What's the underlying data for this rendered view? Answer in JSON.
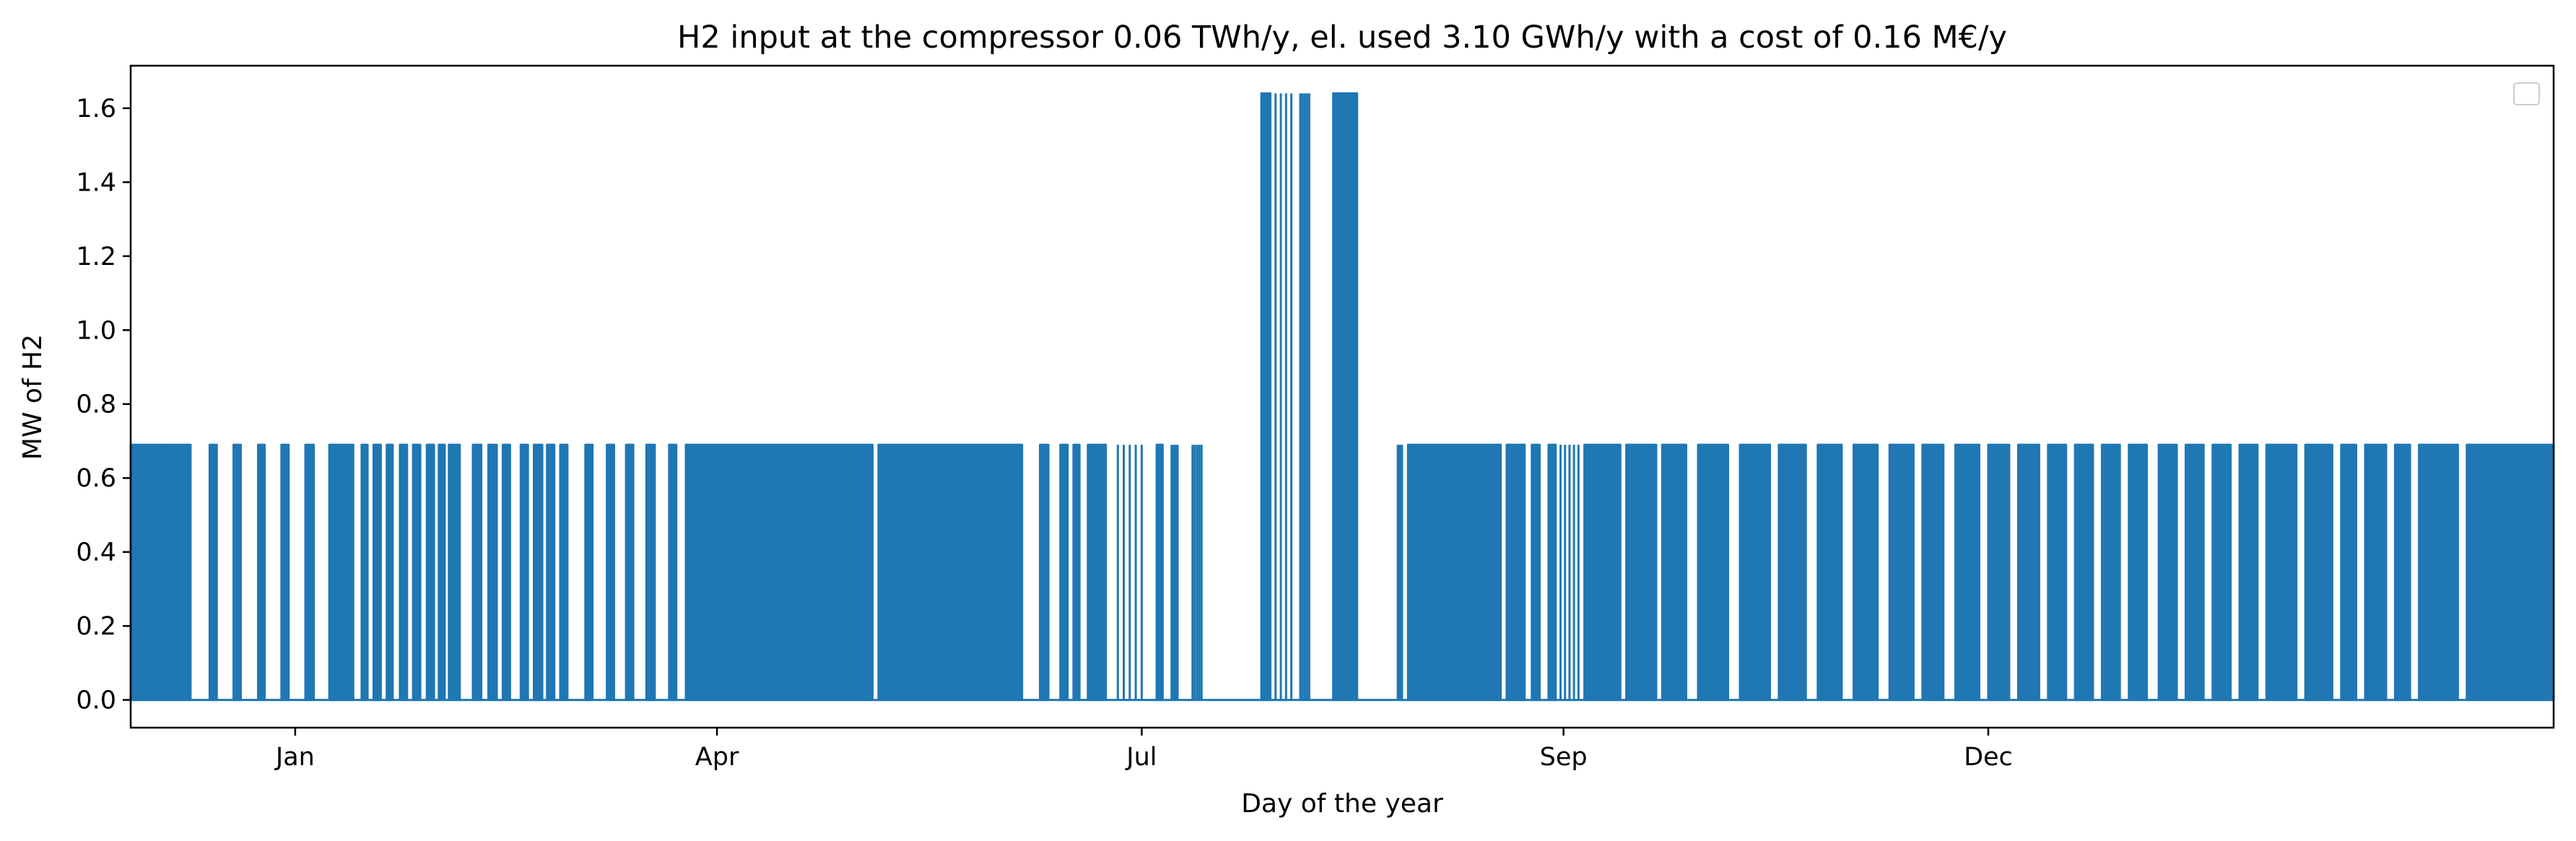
{
  "chart_data": {
    "type": "line",
    "title": "H2 input at the compressor 0.06 TWh/y, el. used 3.10 GWh/y with a cost of 0.16 M€/y",
    "xlabel": "Day of the year",
    "ylabel": "MW of H2",
    "x_ticks": [
      "Jan",
      "Apr",
      "Jul",
      "Sep",
      "Dec"
    ],
    "y_ticks": [
      "0.0",
      "0.2",
      "0.4",
      "0.6",
      "0.8",
      "1.0",
      "1.2",
      "1.4",
      "1.6"
    ],
    "ylim": [
      -0.075,
      1.715
    ],
    "grid": false,
    "legend": "top-right, empty",
    "series": [
      {
        "color": "#1f77b4",
        "on_value": 0.69,
        "peak_value": 1.64,
        "blocks": [
          {
            "start": -0.1,
            "end": 0.5,
            "kind": "dense",
            "level": 0.69
          },
          {
            "start": 0.5,
            "end": 0.9,
            "kind": "dense",
            "level": 0.69
          },
          {
            "start": 1.22,
            "end": 1.34,
            "kind": "dense",
            "level": 0.69
          },
          {
            "start": 1.62,
            "end": 1.74,
            "kind": "dense",
            "level": 0.69
          },
          {
            "start": 2.03,
            "end": 2.14,
            "kind": "dense",
            "level": 0.69
          },
          {
            "start": 2.42,
            "end": 2.54,
            "kind": "dense",
            "level": 0.69
          },
          {
            "start": 2.82,
            "end": 2.96,
            "kind": "dense",
            "level": 0.69
          },
          {
            "start": 3.22,
            "end": 3.62,
            "kind": "dense",
            "level": 0.69
          },
          {
            "start": 3.76,
            "end": 3.86,
            "kind": "dense",
            "level": 0.69
          },
          {
            "start": 3.96,
            "end": 4.08,
            "kind": "dense",
            "level": 0.69
          },
          {
            "start": 4.18,
            "end": 4.28,
            "kind": "dense",
            "level": 0.69
          },
          {
            "start": 4.4,
            "end": 4.52,
            "kind": "dense",
            "level": 0.69
          },
          {
            "start": 4.62,
            "end": 4.74,
            "kind": "dense",
            "level": 0.69
          },
          {
            "start": 4.85,
            "end": 4.97,
            "kind": "dense",
            "level": 0.69
          },
          {
            "start": 5.05,
            "end": 5.15,
            "kind": "dense",
            "level": 0.69
          },
          {
            "start": 5.22,
            "end": 5.4,
            "kind": "dense",
            "level": 0.69
          },
          {
            "start": 5.62,
            "end": 5.76,
            "kind": "dense",
            "level": 0.69
          },
          {
            "start": 5.88,
            "end": 6.02,
            "kind": "dense",
            "level": 0.69
          },
          {
            "start": 6.12,
            "end": 6.24,
            "kind": "dense",
            "level": 0.69
          },
          {
            "start": 6.42,
            "end": 6.54,
            "kind": "dense",
            "level": 0.69
          },
          {
            "start": 6.64,
            "end": 6.78,
            "kind": "dense",
            "level": 0.69
          },
          {
            "start": 6.86,
            "end": 6.98,
            "kind": "dense",
            "level": 0.69
          },
          {
            "start": 7.08,
            "end": 7.2,
            "kind": "dense",
            "level": 0.69
          },
          {
            "start": 7.5,
            "end": 7.62,
            "kind": "dense",
            "level": 0.69
          },
          {
            "start": 7.86,
            "end": 7.98,
            "kind": "dense",
            "level": 0.69
          },
          {
            "start": 8.18,
            "end": 8.3,
            "kind": "dense",
            "level": 0.69
          },
          {
            "start": 8.52,
            "end": 8.66,
            "kind": "dense",
            "level": 0.69
          },
          {
            "start": 8.9,
            "end": 9.02,
            "kind": "dense",
            "level": 0.69
          },
          {
            "start": 9.18,
            "end": 12.3,
            "kind": "dense",
            "level": 0.69
          },
          {
            "start": 12.4,
            "end": 14.8,
            "kind": "dense",
            "level": 0.69
          },
          {
            "start": 15.1,
            "end": 15.24,
            "kind": "dense",
            "level": 0.69
          },
          {
            "start": 15.44,
            "end": 15.56,
            "kind": "dense",
            "level": 0.69
          },
          {
            "start": 15.66,
            "end": 15.76,
            "kind": "dense",
            "level": 0.69
          },
          {
            "start": 15.9,
            "end": 16.2,
            "kind": "dense",
            "level": 0.69
          },
          {
            "start": 16.4,
            "end": 16.8,
            "kind": "sparse",
            "level": 0.69
          },
          {
            "start": 17.05,
            "end": 17.15,
            "kind": "dense",
            "level": 0.69
          },
          {
            "start": 17.3,
            "end": 17.4,
            "kind": "sparse",
            "level": 0.69
          },
          {
            "start": 17.65,
            "end": 17.8,
            "kind": "sparse",
            "level": 0.69
          },
          {
            "start": 18.8,
            "end": 18.95,
            "kind": "dense",
            "level": 1.64
          },
          {
            "start": 18.95,
            "end": 19.3,
            "kind": "sparse",
            "level": 1.64
          },
          {
            "start": 19.45,
            "end": 19.6,
            "kind": "sparse",
            "level": 1.64
          },
          {
            "start": 20.0,
            "end": 20.4,
            "kind": "dense",
            "level": 1.64
          },
          {
            "start": 21.08,
            "end": 21.15,
            "kind": "sparse",
            "level": 0.69
          },
          {
            "start": 21.25,
            "end": 22.8,
            "kind": "dense",
            "level": 0.69
          },
          {
            "start": 22.9,
            "end": 23.2,
            "kind": "dense",
            "level": 0.69
          },
          {
            "start": 23.32,
            "end": 23.45,
            "kind": "dense",
            "level": 0.69
          },
          {
            "start": 23.6,
            "end": 23.72,
            "kind": "dense",
            "level": 0.69
          },
          {
            "start": 23.8,
            "end": 24.1,
            "kind": "sparse",
            "level": 0.69
          },
          {
            "start": 24.2,
            "end": 24.8,
            "kind": "dense",
            "level": 0.69
          },
          {
            "start": 24.9,
            "end": 25.4,
            "kind": "dense",
            "level": 0.69
          },
          {
            "start": 25.5,
            "end": 25.9,
            "kind": "dense",
            "level": 0.69
          },
          {
            "start": 26.1,
            "end": 26.6,
            "kind": "dense",
            "level": 0.69
          },
          {
            "start": 26.8,
            "end": 27.3,
            "kind": "dense",
            "level": 0.69
          },
          {
            "start": 27.45,
            "end": 27.9,
            "kind": "dense",
            "level": 0.69
          },
          {
            "start": 28.1,
            "end": 28.5,
            "kind": "dense",
            "level": 0.69
          },
          {
            "start": 28.7,
            "end": 29.1,
            "kind": "dense",
            "level": 0.69
          },
          {
            "start": 29.3,
            "end": 29.7,
            "kind": "dense",
            "level": 0.69
          },
          {
            "start": 29.85,
            "end": 30.2,
            "kind": "dense",
            "level": 0.69
          },
          {
            "start": 30.4,
            "end": 30.8,
            "kind": "dense",
            "level": 0.69
          },
          {
            "start": 30.95,
            "end": 31.3,
            "kind": "dense",
            "level": 0.69
          },
          {
            "start": 31.45,
            "end": 31.8,
            "kind": "dense",
            "level": 0.69
          },
          {
            "start": 31.95,
            "end": 32.25,
            "kind": "dense",
            "level": 0.69
          },
          {
            "start": 32.4,
            "end": 32.7,
            "kind": "dense",
            "level": 0.69
          },
          {
            "start": 32.85,
            "end": 33.15,
            "kind": "dense",
            "level": 0.69
          },
          {
            "start": 33.3,
            "end": 33.6,
            "kind": "dense",
            "level": 0.69
          },
          {
            "start": 33.8,
            "end": 34.1,
            "kind": "dense",
            "level": 0.69
          },
          {
            "start": 34.25,
            "end": 34.55,
            "kind": "dense",
            "level": 0.69
          },
          {
            "start": 34.7,
            "end": 35.0,
            "kind": "dense",
            "level": 0.69
          },
          {
            "start": 35.15,
            "end": 35.45,
            "kind": "dense",
            "level": 0.69
          },
          {
            "start": 35.6,
            "end": 36.1,
            "kind": "dense",
            "level": 0.69
          },
          {
            "start": 36.25,
            "end": 36.7,
            "kind": "dense",
            "level": 0.69
          },
          {
            "start": 36.85,
            "end": 37.1,
            "kind": "dense",
            "level": 0.69
          },
          {
            "start": 37.25,
            "end": 37.6,
            "kind": "dense",
            "level": 0.69
          },
          {
            "start": 37.75,
            "end": 38.0,
            "kind": "dense",
            "level": 0.69
          },
          {
            "start": 38.15,
            "end": 38.8,
            "kind": "dense",
            "level": 0.69
          },
          {
            "start": 38.95,
            "end": 40.4,
            "kind": "dense",
            "level": 0.69
          }
        ]
      }
    ]
  }
}
